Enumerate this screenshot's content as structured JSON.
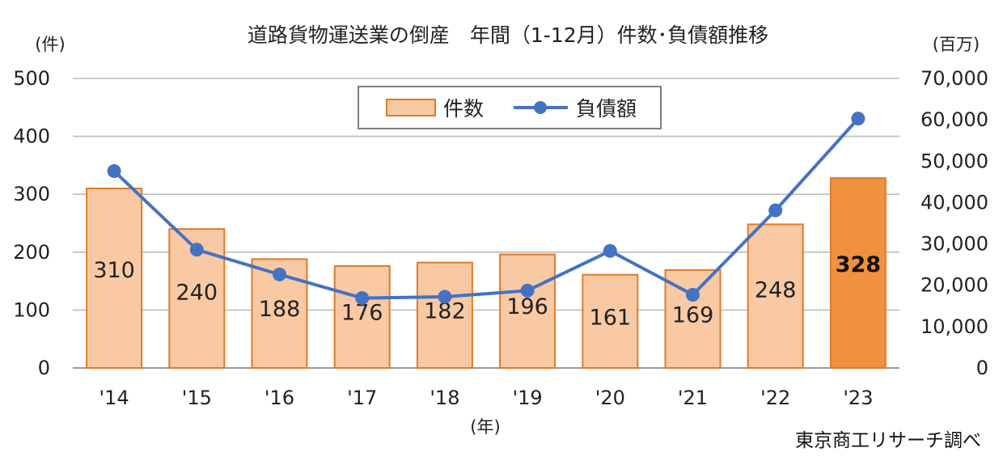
{
  "chart_data": {
    "type": "bar",
    "title": "道路貨物運送業の倒産　年間（1-12月）件数･負債額推移",
    "categories": [
      "'14",
      "'15",
      "'16",
      "'17",
      "'18",
      "'19",
      "'20",
      "'21",
      "'22",
      "'23"
    ],
    "series": [
      {
        "name": "件数",
        "type": "bar",
        "axis": "left",
        "values": [
          310,
          240,
          188,
          176,
          182,
          196,
          161,
          169,
          248,
          328
        ],
        "color": "#F8C9A2",
        "edge": "#E07B28",
        "highlight_color": "#F0913F",
        "highlight_index": 9
      },
      {
        "name": "負債額",
        "type": "line",
        "axis": "right",
        "values": [
          47600,
          28600,
          22600,
          16900,
          17200,
          18700,
          28300,
          17700,
          38100,
          60300
        ],
        "color": "#4472C4"
      }
    ],
    "left_axis": {
      "label": "(件)",
      "ylim": [
        0,
        500
      ],
      "ticks": [
        0,
        100,
        200,
        300,
        400,
        500
      ],
      "tick_labels": [
        "0",
        "100",
        "200",
        "300",
        "400",
        "500"
      ]
    },
    "right_axis": {
      "label": "(百万)",
      "ylim": [
        0,
        70000
      ],
      "ticks": [
        0,
        10000,
        20000,
        30000,
        40000,
        50000,
        60000,
        70000
      ],
      "tick_labels": [
        "0",
        "10,000",
        "20,000",
        "30,000",
        "40,000",
        "50,000",
        "60,000",
        "70,000"
      ]
    },
    "xlabel": "(年)",
    "data_labels": [
      "310",
      "240",
      "188",
      "176",
      "182",
      "196",
      "161",
      "169",
      "248",
      "328"
    ],
    "legend": {
      "position": "top-center",
      "entries": [
        "件数",
        "負債額"
      ]
    },
    "grid": true,
    "source": "東京商工リサーチ調べ"
  }
}
